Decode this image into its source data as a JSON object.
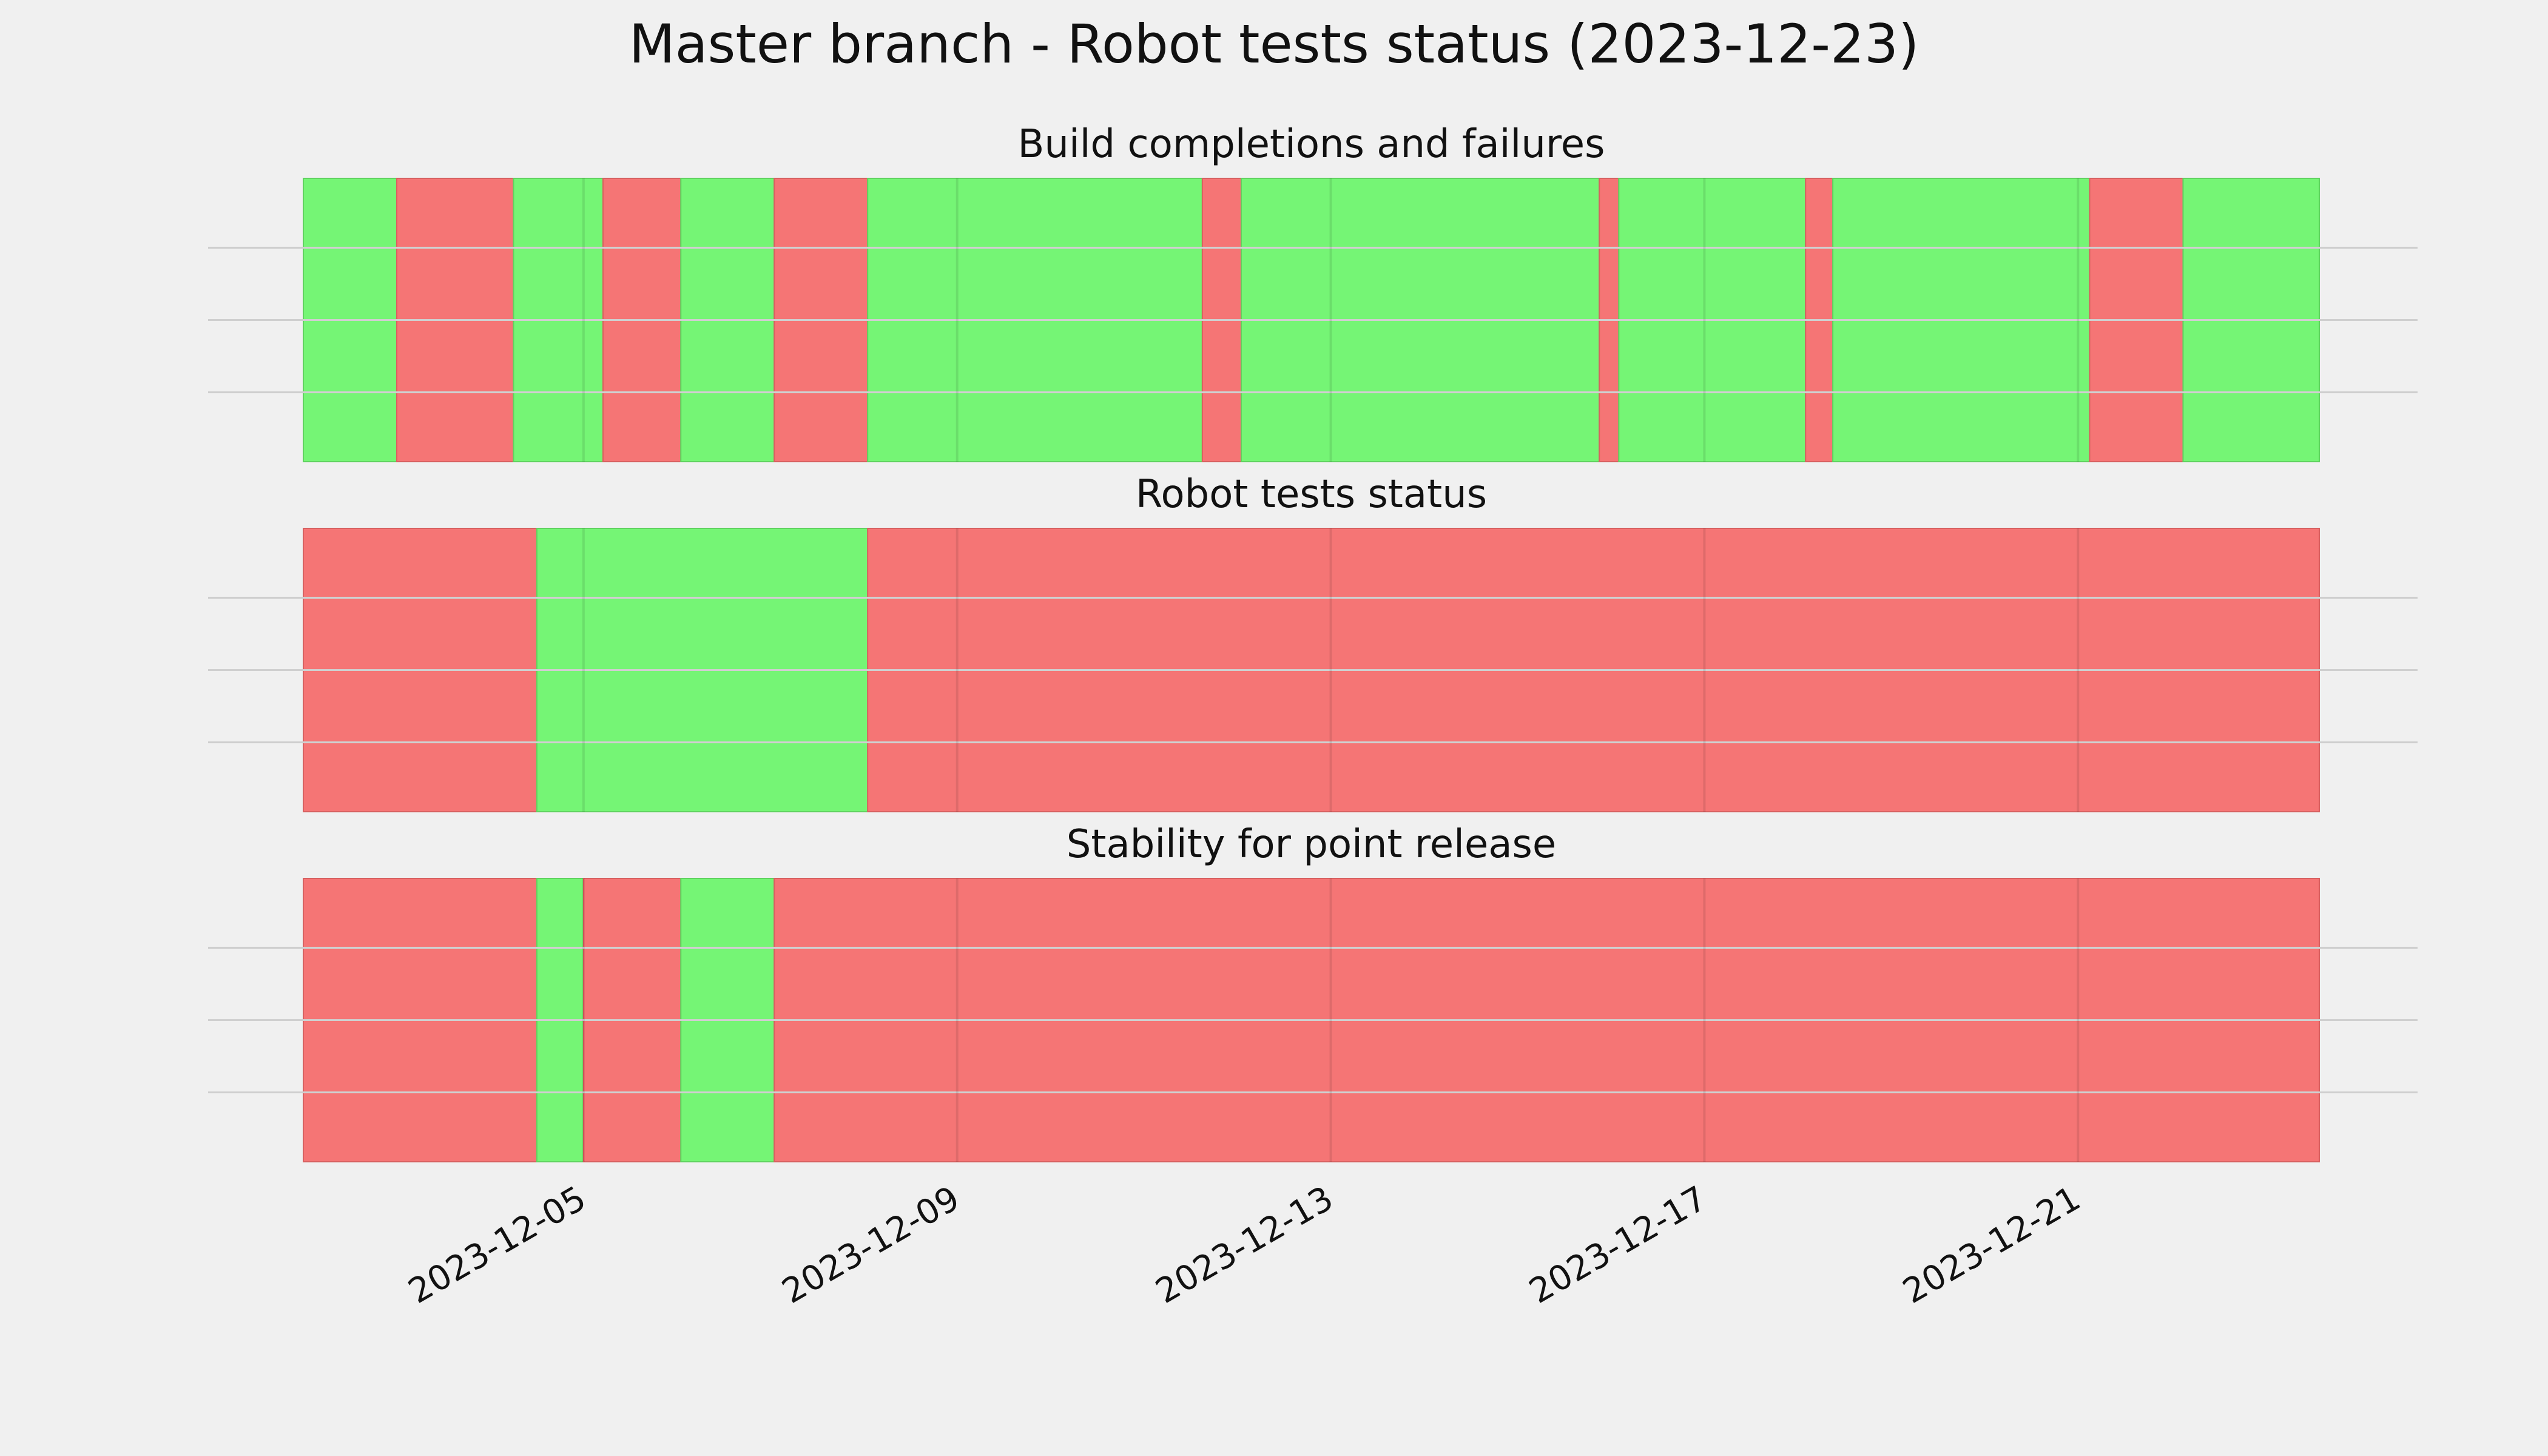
{
  "figure_title": "Master branch - Robot tests status (2023-12-23)",
  "colors": {
    "pass": "#75f575",
    "fail": "#f57575",
    "background": "#f0f0f0",
    "grid": "#cfcfcf",
    "text": "#111111"
  },
  "chart_data": [
    {
      "type": "timeline",
      "title": "Build completions and failures",
      "xlim": [
        "2023-12-02",
        "2023-12-23T14:00"
      ],
      "x_ticks": [
        "2023-12-05",
        "2023-12-09",
        "2023-12-13",
        "2023-12-17",
        "2023-12-21"
      ],
      "grid": true,
      "segments": [
        {
          "start": "2023-12-02T00:00",
          "end": "2023-12-03T00:00",
          "status": "pass"
        },
        {
          "start": "2023-12-03T00:00",
          "end": "2023-12-04T06:00",
          "status": "fail"
        },
        {
          "start": "2023-12-04T06:00",
          "end": "2023-12-05T05:00",
          "status": "pass"
        },
        {
          "start": "2023-12-05T05:00",
          "end": "2023-12-06T01:00",
          "status": "fail"
        },
        {
          "start": "2023-12-06T01:00",
          "end": "2023-12-07T01:00",
          "status": "pass"
        },
        {
          "start": "2023-12-07T01:00",
          "end": "2023-12-08T01:00",
          "status": "fail"
        },
        {
          "start": "2023-12-08T01:00",
          "end": "2023-12-11T15:00",
          "status": "pass"
        },
        {
          "start": "2023-12-11T15:00",
          "end": "2023-12-12T01:00",
          "status": "fail"
        },
        {
          "start": "2023-12-12T01:00",
          "end": "2023-12-15T21:00",
          "status": "pass"
        },
        {
          "start": "2023-12-15T21:00",
          "end": "2023-12-16T02:00",
          "status": "fail"
        },
        {
          "start": "2023-12-16T02:00",
          "end": "2023-12-18T02:00",
          "status": "pass"
        },
        {
          "start": "2023-12-18T02:00",
          "end": "2023-12-18T09:00",
          "status": "fail"
        },
        {
          "start": "2023-12-18T09:00",
          "end": "2023-12-21T03:00",
          "status": "pass"
        },
        {
          "start": "2023-12-21T03:00",
          "end": "2023-12-22T03:00",
          "status": "fail"
        },
        {
          "start": "2023-12-22T03:00",
          "end": "2023-12-23T14:00",
          "status": "pass"
        }
      ]
    },
    {
      "type": "timeline",
      "title": "Robot tests status",
      "xlim": [
        "2023-12-02",
        "2023-12-23T14:00"
      ],
      "x_ticks": [
        "2023-12-05",
        "2023-12-09",
        "2023-12-13",
        "2023-12-17",
        "2023-12-21"
      ],
      "grid": true,
      "segments": [
        {
          "start": "2023-12-02T00:00",
          "end": "2023-12-04T12:00",
          "status": "fail"
        },
        {
          "start": "2023-12-04T12:00",
          "end": "2023-12-08T01:00",
          "status": "pass"
        },
        {
          "start": "2023-12-08T01:00",
          "end": "2023-12-23T14:00",
          "status": "fail"
        }
      ]
    },
    {
      "type": "timeline",
      "title": "Stability for point release",
      "xlim": [
        "2023-12-02",
        "2023-12-23T14:00"
      ],
      "x_ticks": [
        "2023-12-05",
        "2023-12-09",
        "2023-12-13",
        "2023-12-17",
        "2023-12-21"
      ],
      "x_tick_labels": [
        "2023-12-05",
        "2023-12-09",
        "2023-12-13",
        "2023-12-17",
        "2023-12-21"
      ],
      "grid": true,
      "segments": [
        {
          "start": "2023-12-02T00:00",
          "end": "2023-12-04T12:00",
          "status": "fail"
        },
        {
          "start": "2023-12-04T12:00",
          "end": "2023-12-05T00:00",
          "status": "pass"
        },
        {
          "start": "2023-12-05T00:00",
          "end": "2023-12-06T01:00",
          "status": "fail"
        },
        {
          "start": "2023-12-06T01:00",
          "end": "2023-12-07T01:00",
          "status": "pass"
        },
        {
          "start": "2023-12-07T01:00",
          "end": "2023-12-23T14:00",
          "status": "fail"
        }
      ]
    }
  ]
}
